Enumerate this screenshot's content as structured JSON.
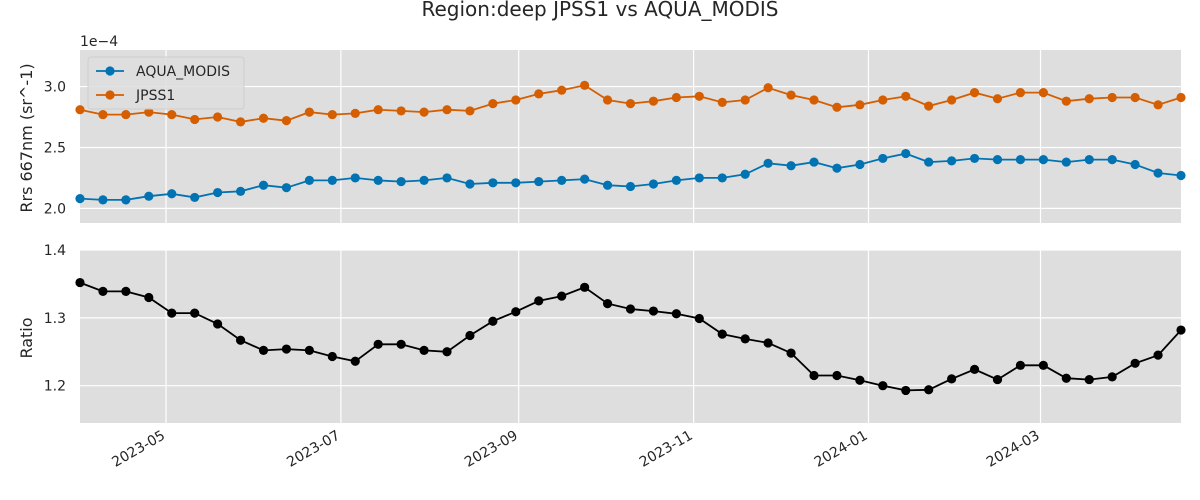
{
  "chart_data": {
    "title": "Region:deep JPSS1 vs AQUA_MODIS",
    "dates": [
      "2023-04-01",
      "2023-04-09",
      "2023-04-17",
      "2023-04-25",
      "2023-05-03",
      "2023-05-11",
      "2023-05-19",
      "2023-05-27",
      "2023-06-04",
      "2023-06-12",
      "2023-06-20",
      "2023-06-28",
      "2023-07-06",
      "2023-07-14",
      "2023-07-22",
      "2023-07-30",
      "2023-08-07",
      "2023-08-15",
      "2023-08-23",
      "2023-08-31",
      "2023-09-08",
      "2023-09-16",
      "2023-09-24",
      "2023-10-02",
      "2023-10-10",
      "2023-10-18",
      "2023-10-26",
      "2023-11-03",
      "2023-11-11",
      "2023-11-19",
      "2023-11-27",
      "2023-12-05",
      "2023-12-13",
      "2023-12-21",
      "2023-12-29",
      "2024-01-06",
      "2024-01-14",
      "2024-01-22",
      "2024-01-30",
      "2024-02-07",
      "2024-02-15",
      "2024-02-23",
      "2024-03-02",
      "2024-03-10",
      "2024-03-18",
      "2024-03-26",
      "2024-04-03",
      "2024-04-11",
      "2024-04-19"
    ],
    "x_range": [
      "2023-04-01",
      "2024-04-19"
    ],
    "x_ticks": [
      "2023-05-01",
      "2023-07-01",
      "2023-09-01",
      "2023-11-01",
      "2024-01-01",
      "2024-03-01"
    ],
    "x_tick_labels": [
      "2023-05",
      "2023-07",
      "2023-09",
      "2023-11",
      "2024-01",
      "2024-03"
    ],
    "panels": [
      {
        "type": "line",
        "ylabel": "Rrs 667nm (sr^-1)",
        "offset_text": "1e−4",
        "ylim": [
          1.88,
          3.3
        ],
        "yticks": [
          2.0,
          2.5,
          3.0
        ],
        "ytick_labels": [
          "2.0",
          "2.5",
          "3.0"
        ],
        "legend_position": "upper-left",
        "series": [
          {
            "name": "AQUA_MODIS",
            "color": "#0173b2",
            "values": [
              2.08,
              2.07,
              2.07,
              2.1,
              2.12,
              2.09,
              2.13,
              2.14,
              2.19,
              2.17,
              2.23,
              2.23,
              2.25,
              2.23,
              2.22,
              2.23,
              2.25,
              2.2,
              2.21,
              2.21,
              2.22,
              2.23,
              2.24,
              2.19,
              2.18,
              2.2,
              2.23,
              2.25,
              2.25,
              2.28,
              2.37,
              2.35,
              2.38,
              2.33,
              2.36,
              2.41,
              2.45,
              2.38,
              2.39,
              2.41,
              2.4,
              2.4,
              2.4,
              2.38,
              2.4,
              2.4,
              2.36,
              2.29,
              2.27
            ]
          },
          {
            "name": "JPSS1",
            "color": "#d55e00",
            "values": [
              2.81,
              2.77,
              2.77,
              2.79,
              2.77,
              2.73,
              2.75,
              2.71,
              2.74,
              2.72,
              2.79,
              2.77,
              2.78,
              2.81,
              2.8,
              2.79,
              2.81,
              2.8,
              2.86,
              2.89,
              2.94,
              2.97,
              3.01,
              2.89,
              2.86,
              2.88,
              2.91,
              2.92,
              2.87,
              2.89,
              2.99,
              2.93,
              2.89,
              2.83,
              2.85,
              2.89,
              2.92,
              2.84,
              2.89,
              2.95,
              2.9,
              2.95,
              2.95,
              2.88,
              2.9,
              2.91,
              2.91,
              2.85,
              2.91
            ]
          }
        ]
      },
      {
        "type": "line",
        "ylabel": "Ratio",
        "ylim": [
          1.145,
          1.4
        ],
        "yticks": [
          1.2,
          1.3,
          1.4
        ],
        "ytick_labels": [
          "1.2",
          "1.3",
          "1.4"
        ],
        "series": [
          {
            "color": "#000000",
            "values": [
              1.352,
              1.339,
              1.339,
              1.33,
              1.307,
              1.307,
              1.291,
              1.267,
              1.252,
              1.254,
              1.252,
              1.243,
              1.236,
              1.261,
              1.261,
              1.252,
              1.25,
              1.274,
              1.295,
              1.309,
              1.325,
              1.332,
              1.345,
              1.321,
              1.313,
              1.31,
              1.306,
              1.299,
              1.276,
              1.269,
              1.263,
              1.248,
              1.215,
              1.215,
              1.208,
              1.2,
              1.193,
              1.194,
              1.21,
              1.224,
              1.209,
              1.23,
              1.23,
              1.211,
              1.209,
              1.213,
              1.233,
              1.245,
              1.282
            ]
          }
        ]
      }
    ]
  }
}
